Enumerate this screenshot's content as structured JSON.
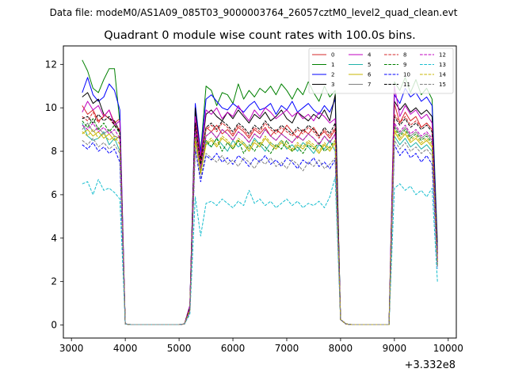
{
  "chart_data": {
    "type": "line",
    "suptitle": "Data file: modeM0/AS1A09_085T03_9000003764_26057cztM0_level2_quad_clean.evt",
    "title": "Quadrant 0 module wise count rates with 100.0s bins.",
    "xlabel": "",
    "ylabel": "",
    "x_offset_label": "+3.332e8",
    "xlim": [
      2850,
      10150
    ],
    "ylim": [
      -0.6,
      12.85
    ],
    "xticks": [
      3000,
      4000,
      5000,
      6000,
      7000,
      8000,
      9000,
      10000
    ],
    "yticks": [
      0,
      2,
      4,
      6,
      8,
      10,
      12
    ],
    "x": [
      3200,
      3300,
      3400,
      3500,
      3600,
      3700,
      3800,
      3900,
      4000,
      4100,
      4200,
      4300,
      4400,
      4500,
      4600,
      4700,
      4800,
      4900,
      5000,
      5100,
      5200,
      5300,
      5400,
      5500,
      5600,
      5700,
      5800,
      5900,
      6000,
      6100,
      6200,
      6300,
      6400,
      6500,
      6600,
      6700,
      6800,
      6900,
      7000,
      7100,
      7200,
      7300,
      7400,
      7500,
      7600,
      7700,
      7800,
      7900,
      8000,
      8100,
      8200,
      8300,
      8400,
      8500,
      8600,
      8700,
      8800,
      8900,
      9000,
      9100,
      9200,
      9300,
      9400,
      9500,
      9600,
      9700,
      9800
    ],
    "legend_position": "upper right",
    "series": [
      {
        "name": "0",
        "color": "#d62728",
        "dash": "solid",
        "values": [
          10.1,
          9.7,
          9.9,
          9.4,
          9.6,
          9.9,
          9.3,
          9.5,
          0.05,
          0.02,
          0.02,
          0.02,
          0.02,
          0.02,
          0.02,
          0.02,
          0.02,
          0.02,
          0.02,
          0.05,
          0.9,
          9.4,
          7.6,
          9.1,
          8.9,
          9.2,
          8.8,
          9.0,
          8.7,
          9.1,
          8.9,
          8.6,
          9.0,
          8.8,
          9.1,
          8.7,
          9.0,
          8.8,
          9.2,
          8.9,
          8.6,
          9.0,
          8.8,
          9.1,
          8.7,
          8.9,
          8.6,
          9.0,
          0.25,
          0.05,
          0.02,
          0.02,
          0.02,
          0.02,
          0.02,
          0.02,
          0.02,
          0.02,
          10.2,
          9.3,
          9.8,
          9.4,
          9.6,
          9.1,
          9.3,
          9.0,
          2.9
        ]
      },
      {
        "name": "1",
        "color": "#008000",
        "dash": "solid",
        "values": [
          12.2,
          11.7,
          10.9,
          10.7,
          11.3,
          11.8,
          11.8,
          9.3,
          0.05,
          0.02,
          0.02,
          0.02,
          0.02,
          0.02,
          0.02,
          0.02,
          0.02,
          0.02,
          0.02,
          0.05,
          0.8,
          9.9,
          8.0,
          11.0,
          10.8,
          10.1,
          10.7,
          10.6,
          10.2,
          11.1,
          10.4,
          10.8,
          10.5,
          10.9,
          10.7,
          11.0,
          10.6,
          11.1,
          10.8,
          10.4,
          10.9,
          10.6,
          11.2,
          10.7,
          10.3,
          11.0,
          10.5,
          10.8,
          0.25,
          0.05,
          0.02,
          0.02,
          0.02,
          0.02,
          0.02,
          0.02,
          0.02,
          0.02,
          11.2,
          10.8,
          11.4,
          10.7,
          11.3,
          10.6,
          10.9,
          10.4,
          3.8
        ]
      },
      {
        "name": "2",
        "color": "#0000ff",
        "dash": "solid",
        "values": [
          10.7,
          11.4,
          10.6,
          10.3,
          10.5,
          11.1,
          10.8,
          9.9,
          0.05,
          0.02,
          0.02,
          0.02,
          0.02,
          0.02,
          0.02,
          0.02,
          0.02,
          0.02,
          0.02,
          0.05,
          0.9,
          10.2,
          7.9,
          10.4,
          10.6,
          10.3,
          10.0,
          9.9,
          10.2,
          10.0,
          9.8,
          10.1,
          10.3,
          9.9,
          10.0,
          10.2,
          9.7,
          10.1,
          9.9,
          10.3,
          9.8,
          10.0,
          10.2,
          9.9,
          9.7,
          10.1,
          9.8,
          10.4,
          0.25,
          0.05,
          0.02,
          0.02,
          0.02,
          0.02,
          0.02,
          0.02,
          0.02,
          0.02,
          10.6,
          10.2,
          10.9,
          10.5,
          10.7,
          10.3,
          10.5,
          10.1,
          3.5
        ]
      },
      {
        "name": "3",
        "color": "#000000",
        "dash": "solid",
        "values": [
          10.5,
          10.7,
          10.2,
          10.4,
          9.7,
          9.5,
          9.4,
          8.9,
          0.05,
          0.02,
          0.02,
          0.02,
          0.02,
          0.02,
          0.02,
          0.02,
          0.02,
          0.02,
          0.02,
          0.05,
          0.8,
          10.0,
          7.7,
          9.7,
          9.9,
          9.6,
          9.4,
          9.8,
          9.5,
          9.9,
          9.6,
          9.3,
          9.7,
          9.5,
          9.8,
          9.4,
          9.6,
          9.9,
          9.5,
          9.3,
          9.8,
          9.6,
          9.4,
          9.7,
          9.5,
          9.9,
          9.4,
          10.6,
          0.25,
          0.05,
          0.02,
          0.02,
          0.02,
          0.02,
          0.02,
          0.02,
          0.02,
          0.02,
          10.3,
          9.9,
          10.2,
          9.8,
          10.0,
          9.7,
          9.9,
          9.6,
          3.3
        ]
      },
      {
        "name": "4",
        "color": "#c000c0",
        "dash": "solid",
        "values": [
          9.8,
          10.3,
          9.9,
          10.1,
          9.6,
          9.9,
          9.2,
          9.4,
          0.05,
          0.02,
          0.02,
          0.02,
          0.02,
          0.02,
          0.02,
          0.02,
          0.02,
          0.02,
          0.02,
          0.05,
          0.9,
          9.6,
          7.8,
          9.9,
          9.7,
          10.0,
          9.5,
          9.8,
          9.6,
          10.1,
          9.7,
          9.4,
          9.9,
          9.6,
          10.0,
          9.8,
          9.5,
          9.7,
          9.9,
          9.6,
          9.8,
          9.5,
          9.7,
          9.4,
          9.8,
          9.6,
          9.3,
          9.5,
          0.25,
          0.05,
          0.02,
          0.02,
          0.02,
          0.02,
          0.02,
          0.02,
          0.02,
          0.02,
          11.0,
          9.6,
          10.1,
          9.7,
          9.9,
          9.5,
          9.7,
          9.3,
          3.1
        ]
      },
      {
        "name": "5",
        "color": "#20b2aa",
        "dash": "solid",
        "values": [
          9.3,
          8.7,
          8.5,
          8.6,
          8.9,
          8.3,
          8.6,
          8.0,
          0.05,
          0.02,
          0.02,
          0.02,
          0.02,
          0.02,
          0.02,
          0.02,
          0.02,
          0.02,
          0.02,
          0.05,
          0.7,
          8.7,
          7.2,
          8.4,
          8.2,
          8.6,
          8.3,
          8.0,
          8.5,
          8.2,
          8.4,
          8.1,
          8.6,
          8.3,
          8.0,
          8.4,
          8.2,
          8.5,
          8.1,
          8.3,
          8.0,
          8.4,
          8.2,
          7.9,
          8.3,
          8.1,
          8.5,
          8.0,
          0.25,
          0.05,
          0.02,
          0.02,
          0.02,
          0.02,
          0.02,
          0.02,
          0.02,
          0.02,
          8.7,
          8.3,
          8.6,
          8.2,
          8.4,
          8.1,
          8.3,
          8.0,
          2.8
        ]
      },
      {
        "name": "6",
        "color": "#c8b400",
        "dash": "solid",
        "values": [
          8.8,
          9.0,
          8.7,
          8.9,
          8.6,
          8.8,
          8.5,
          8.7,
          0.05,
          0.02,
          0.02,
          0.02,
          0.02,
          0.02,
          0.02,
          0.02,
          0.02,
          0.02,
          0.02,
          0.05,
          0.7,
          8.5,
          7.0,
          8.3,
          8.5,
          8.2,
          8.6,
          8.4,
          8.1,
          8.5,
          8.3,
          8.0,
          8.4,
          8.2,
          8.6,
          8.3,
          8.1,
          8.4,
          8.2,
          8.0,
          8.3,
          8.1,
          8.4,
          8.2,
          7.9,
          8.3,
          8.0,
          8.4,
          0.25,
          0.05,
          0.02,
          0.02,
          0.02,
          0.02,
          0.02,
          0.02,
          0.02,
          0.02,
          8.9,
          8.5,
          8.8,
          8.4,
          8.6,
          8.3,
          8.5,
          8.2,
          2.7
        ]
      },
      {
        "name": "7",
        "color": "#808080",
        "dash": "solid",
        "values": [
          9.0,
          9.3,
          8.9,
          9.1,
          8.8,
          9.0,
          8.7,
          8.6,
          0.05,
          0.02,
          0.02,
          0.02,
          0.02,
          0.02,
          0.02,
          0.02,
          0.02,
          0.02,
          0.02,
          0.05,
          0.8,
          8.9,
          7.3,
          8.7,
          8.9,
          8.6,
          9.0,
          8.8,
          8.5,
          8.9,
          8.7,
          8.4,
          8.8,
          8.6,
          9.0,
          8.7,
          8.5,
          8.8,
          8.6,
          8.4,
          8.7,
          8.5,
          8.8,
          8.6,
          8.3,
          8.7,
          8.4,
          8.8,
          0.25,
          0.05,
          0.02,
          0.02,
          0.02,
          0.02,
          0.02,
          0.02,
          0.02,
          0.02,
          9.2,
          8.8,
          9.1,
          8.7,
          8.9,
          8.6,
          8.8,
          8.5,
          2.9
        ]
      },
      {
        "name": "8",
        "color": "#d62728",
        "dash": "dashed",
        "values": [
          9.6,
          9.4,
          9.8,
          9.3,
          9.7,
          9.5,
          9.2,
          9.0,
          0.05,
          0.02,
          0.02,
          0.02,
          0.02,
          0.02,
          0.02,
          0.02,
          0.02,
          0.02,
          0.02,
          0.05,
          0.8,
          9.2,
          7.5,
          9.0,
          9.2,
          8.9,
          9.3,
          9.1,
          8.8,
          9.2,
          9.0,
          8.7,
          9.1,
          8.9,
          9.3,
          9.0,
          8.8,
          9.1,
          8.9,
          8.7,
          9.0,
          8.8,
          9.1,
          8.9,
          8.6,
          9.0,
          8.7,
          9.1,
          0.25,
          0.05,
          0.02,
          0.02,
          0.02,
          0.02,
          0.02,
          0.02,
          0.02,
          0.02,
          9.7,
          9.3,
          9.6,
          9.2,
          9.4,
          9.1,
          9.3,
          9.0,
          3.0
        ]
      },
      {
        "name": "9",
        "color": "#008000",
        "dash": "dashed",
        "values": [
          9.4,
          9.1,
          9.5,
          9.0,
          9.3,
          8.9,
          9.2,
          8.8,
          0.05,
          0.02,
          0.02,
          0.02,
          0.02,
          0.02,
          0.02,
          0.02,
          0.02,
          0.02,
          0.02,
          0.05,
          0.7,
          8.8,
          7.1,
          8.5,
          8.2,
          8.6,
          8.0,
          8.4,
          8.1,
          8.5,
          7.9,
          8.3,
          8.0,
          8.4,
          8.2,
          7.9,
          8.3,
          8.1,
          8.5,
          8.0,
          8.2,
          7.9,
          8.3,
          8.1,
          8.4,
          8.0,
          8.2,
          8.5,
          0.25,
          0.05,
          0.02,
          0.02,
          0.02,
          0.02,
          0.02,
          0.02,
          0.02,
          0.02,
          9.1,
          8.7,
          9.0,
          8.6,
          8.8,
          8.5,
          8.7,
          8.4,
          2.8
        ]
      },
      {
        "name": "10",
        "color": "#0000ff",
        "dash": "dashed",
        "values": [
          8.3,
          8.1,
          8.4,
          8.0,
          8.2,
          7.9,
          8.1,
          7.5,
          0.05,
          0.02,
          0.02,
          0.02,
          0.02,
          0.02,
          0.02,
          0.02,
          0.02,
          0.02,
          0.02,
          0.05,
          0.6,
          8.1,
          6.6,
          7.8,
          7.6,
          7.9,
          7.5,
          7.7,
          7.4,
          7.8,
          7.6,
          7.3,
          7.7,
          7.5,
          7.8,
          7.4,
          7.6,
          7.3,
          7.7,
          7.5,
          7.2,
          7.6,
          7.4,
          7.7,
          7.3,
          7.5,
          7.2,
          7.6,
          0.25,
          0.05,
          0.02,
          0.02,
          0.02,
          0.02,
          0.02,
          0.02,
          0.02,
          0.02,
          8.3,
          7.8,
          8.1,
          7.7,
          7.9,
          7.5,
          7.8,
          7.4,
          2.6
        ]
      },
      {
        "name": "11",
        "color": "#000000",
        "dash": "dashed",
        "values": [
          9.5,
          9.6,
          9.3,
          9.7,
          9.4,
          9.6,
          9.2,
          8.9,
          0.05,
          0.02,
          0.02,
          0.02,
          0.02,
          0.02,
          0.02,
          0.02,
          0.02,
          0.02,
          0.02,
          0.05,
          0.8,
          9.3,
          7.4,
          9.1,
          9.3,
          9.0,
          9.4,
          9.2,
          8.9,
          9.3,
          9.1,
          8.8,
          9.2,
          9.0,
          9.4,
          9.1,
          8.9,
          9.2,
          9.0,
          8.8,
          9.1,
          8.9,
          9.2,
          9.0,
          8.7,
          9.1,
          8.8,
          9.3,
          0.25,
          0.05,
          0.02,
          0.02,
          0.02,
          0.02,
          0.02,
          0.02,
          0.02,
          0.02,
          9.6,
          9.2,
          9.5,
          9.1,
          9.3,
          9.0,
          9.2,
          8.9,
          3.0
        ]
      },
      {
        "name": "12",
        "color": "#c000c0",
        "dash": "dashed",
        "values": [
          9.2,
          9.0,
          9.3,
          8.9,
          9.1,
          8.8,
          9.0,
          8.6,
          0.05,
          0.02,
          0.02,
          0.02,
          0.02,
          0.02,
          0.02,
          0.02,
          0.02,
          0.02,
          0.02,
          0.05,
          0.7,
          8.9,
          7.2,
          8.7,
          8.9,
          8.6,
          9.0,
          8.8,
          8.5,
          8.9,
          8.7,
          8.4,
          8.8,
          8.6,
          9.0,
          8.7,
          8.5,
          8.8,
          8.6,
          8.4,
          8.7,
          8.5,
          8.8,
          8.6,
          8.3,
          8.7,
          8.4,
          8.8,
          0.25,
          0.05,
          0.02,
          0.02,
          0.02,
          0.02,
          0.02,
          0.02,
          0.02,
          0.02,
          9.3,
          8.9,
          9.2,
          8.8,
          9.0,
          8.7,
          8.9,
          8.6,
          2.9
        ]
      },
      {
        "name": "13",
        "color": "#17becf",
        "dash": "dashed",
        "values": [
          6.5,
          6.6,
          6.0,
          6.7,
          6.2,
          6.3,
          6.1,
          5.8,
          0.05,
          0.02,
          0.02,
          0.02,
          0.02,
          0.02,
          0.02,
          0.02,
          0.02,
          0.02,
          0.02,
          0.05,
          0.5,
          5.9,
          4.1,
          5.6,
          5.7,
          5.5,
          5.8,
          5.6,
          5.4,
          5.7,
          5.5,
          6.2,
          5.6,
          5.8,
          5.5,
          5.7,
          5.4,
          5.6,
          5.8,
          5.5,
          5.7,
          5.4,
          5.6,
          5.5,
          5.7,
          5.4,
          5.9,
          6.8,
          0.25,
          0.05,
          0.02,
          0.02,
          0.02,
          0.02,
          0.02,
          0.02,
          0.02,
          0.02,
          6.3,
          6.5,
          6.2,
          6.4,
          6.0,
          6.2,
          5.9,
          6.3,
          2.0
        ]
      },
      {
        "name": "14",
        "color": "#c8b400",
        "dash": "dashed",
        "values": [
          8.9,
          8.7,
          9.0,
          8.6,
          8.8,
          8.5,
          8.7,
          8.3,
          0.05,
          0.02,
          0.02,
          0.02,
          0.02,
          0.02,
          0.02,
          0.02,
          0.02,
          0.02,
          0.02,
          0.05,
          0.7,
          8.6,
          7.0,
          8.4,
          8.6,
          8.3,
          8.7,
          8.5,
          8.2,
          8.6,
          8.4,
          8.1,
          8.5,
          8.3,
          8.7,
          8.4,
          8.2,
          8.5,
          8.3,
          8.1,
          8.4,
          8.2,
          8.5,
          8.3,
          8.0,
          8.4,
          8.1,
          8.5,
          0.25,
          0.05,
          0.02,
          0.02,
          0.02,
          0.02,
          0.02,
          0.02,
          0.02,
          0.02,
          9.0,
          8.6,
          8.9,
          8.5,
          8.7,
          8.4,
          8.6,
          8.3,
          2.8
        ]
      },
      {
        "name": "15",
        "color": "#808080",
        "dash": "dashed",
        "values": [
          8.5,
          8.3,
          8.6,
          8.2,
          8.4,
          8.1,
          8.3,
          7.9,
          0.05,
          0.02,
          0.02,
          0.02,
          0.02,
          0.02,
          0.02,
          0.02,
          0.02,
          0.02,
          0.02,
          0.05,
          0.6,
          8.2,
          6.8,
          7.9,
          7.7,
          7.5,
          7.8,
          7.4,
          7.6,
          7.3,
          7.7,
          7.5,
          7.2,
          7.6,
          7.4,
          7.7,
          7.3,
          7.5,
          7.2,
          7.6,
          7.4,
          7.1,
          7.5,
          7.3,
          7.6,
          7.2,
          7.4,
          7.7,
          0.25,
          0.05,
          0.02,
          0.02,
          0.02,
          0.02,
          0.02,
          0.02,
          0.02,
          0.02,
          8.5,
          8.1,
          8.4,
          8.0,
          8.2,
          7.9,
          8.1,
          7.8,
          2.7
        ]
      }
    ]
  }
}
